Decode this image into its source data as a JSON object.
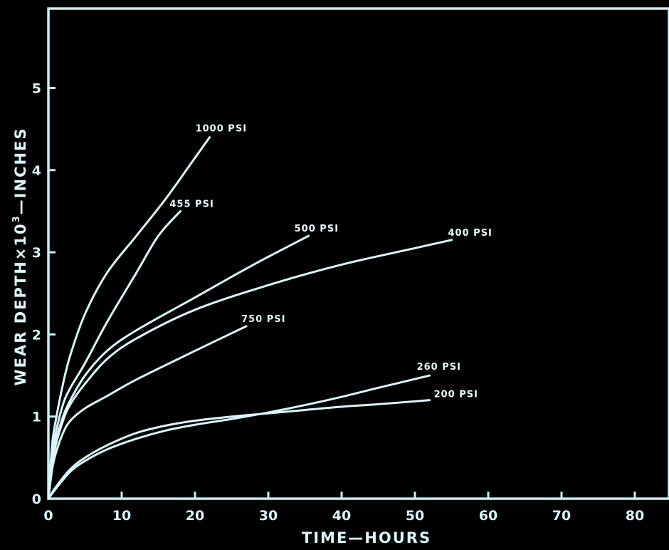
{
  "chart_data": {
    "type": "line",
    "title": "",
    "xlabel": "TIME—HOURS",
    "ylabel": {
      "prefix": "WEAR DEPTH×10",
      "sup": "3",
      "suffix": "—INCHES"
    },
    "xlim": [
      0,
      85
    ],
    "ylim": [
      0,
      6
    ],
    "x_ticks": [
      0,
      10,
      20,
      30,
      40,
      50,
      60,
      70,
      80
    ],
    "y_ticks": [
      0,
      1,
      2,
      3,
      4,
      5
    ],
    "grid": false,
    "legend": "inline-labels",
    "color": "#d8f6fb",
    "series": [
      {
        "name": "1000 PSI",
        "x": [
          0,
          0.5,
          1,
          2,
          3,
          5,
          8,
          12,
          16,
          20,
          22
        ],
        "y": [
          0,
          0.65,
          0.95,
          1.4,
          1.75,
          2.25,
          2.75,
          3.2,
          3.65,
          4.15,
          4.4
        ]
      },
      {
        "name": "455 PSI",
        "x": [
          0,
          0.5,
          1,
          2,
          3,
          5,
          8,
          12,
          15,
          18
        ],
        "y": [
          0,
          0.5,
          0.8,
          1.15,
          1.35,
          1.65,
          2.15,
          2.75,
          3.2,
          3.5
        ]
      },
      {
        "name": "500 PSI",
        "x": [
          0,
          0.5,
          1,
          2,
          3,
          5,
          8,
          12,
          20,
          28,
          35.5
        ],
        "y": [
          0,
          0.45,
          0.7,
          1.0,
          1.2,
          1.5,
          1.8,
          2.05,
          2.45,
          2.85,
          3.2
        ]
      },
      {
        "name": "400 PSI",
        "x": [
          0,
          0.5,
          1,
          2,
          3,
          5,
          8,
          12,
          20,
          30,
          40,
          50,
          55
        ],
        "y": [
          0,
          0.4,
          0.65,
          0.95,
          1.15,
          1.4,
          1.7,
          1.95,
          2.3,
          2.6,
          2.85,
          3.05,
          3.15
        ]
      },
      {
        "name": "750 PSI",
        "x": [
          0,
          0.5,
          1,
          2,
          3,
          5,
          8,
          12,
          20,
          27
        ],
        "y": [
          0,
          0.35,
          0.55,
          0.8,
          0.95,
          1.1,
          1.25,
          1.45,
          1.8,
          2.1
        ]
      },
      {
        "name": "260 PSI",
        "x": [
          0,
          1,
          3,
          5,
          8,
          12,
          16,
          20,
          25,
          30,
          35,
          40,
          45,
          52
        ],
        "y": [
          0,
          0.12,
          0.33,
          0.46,
          0.6,
          0.73,
          0.83,
          0.9,
          0.97,
          1.05,
          1.14,
          1.24,
          1.35,
          1.5
        ]
      },
      {
        "name": "200 PSI",
        "x": [
          0,
          1,
          3,
          5,
          8,
          12,
          16,
          20,
          25,
          30,
          35,
          40,
          45,
          52
        ],
        "y": [
          0,
          0.14,
          0.36,
          0.5,
          0.65,
          0.8,
          0.89,
          0.95,
          1.0,
          1.04,
          1.08,
          1.12,
          1.15,
          1.2
        ]
      }
    ]
  }
}
